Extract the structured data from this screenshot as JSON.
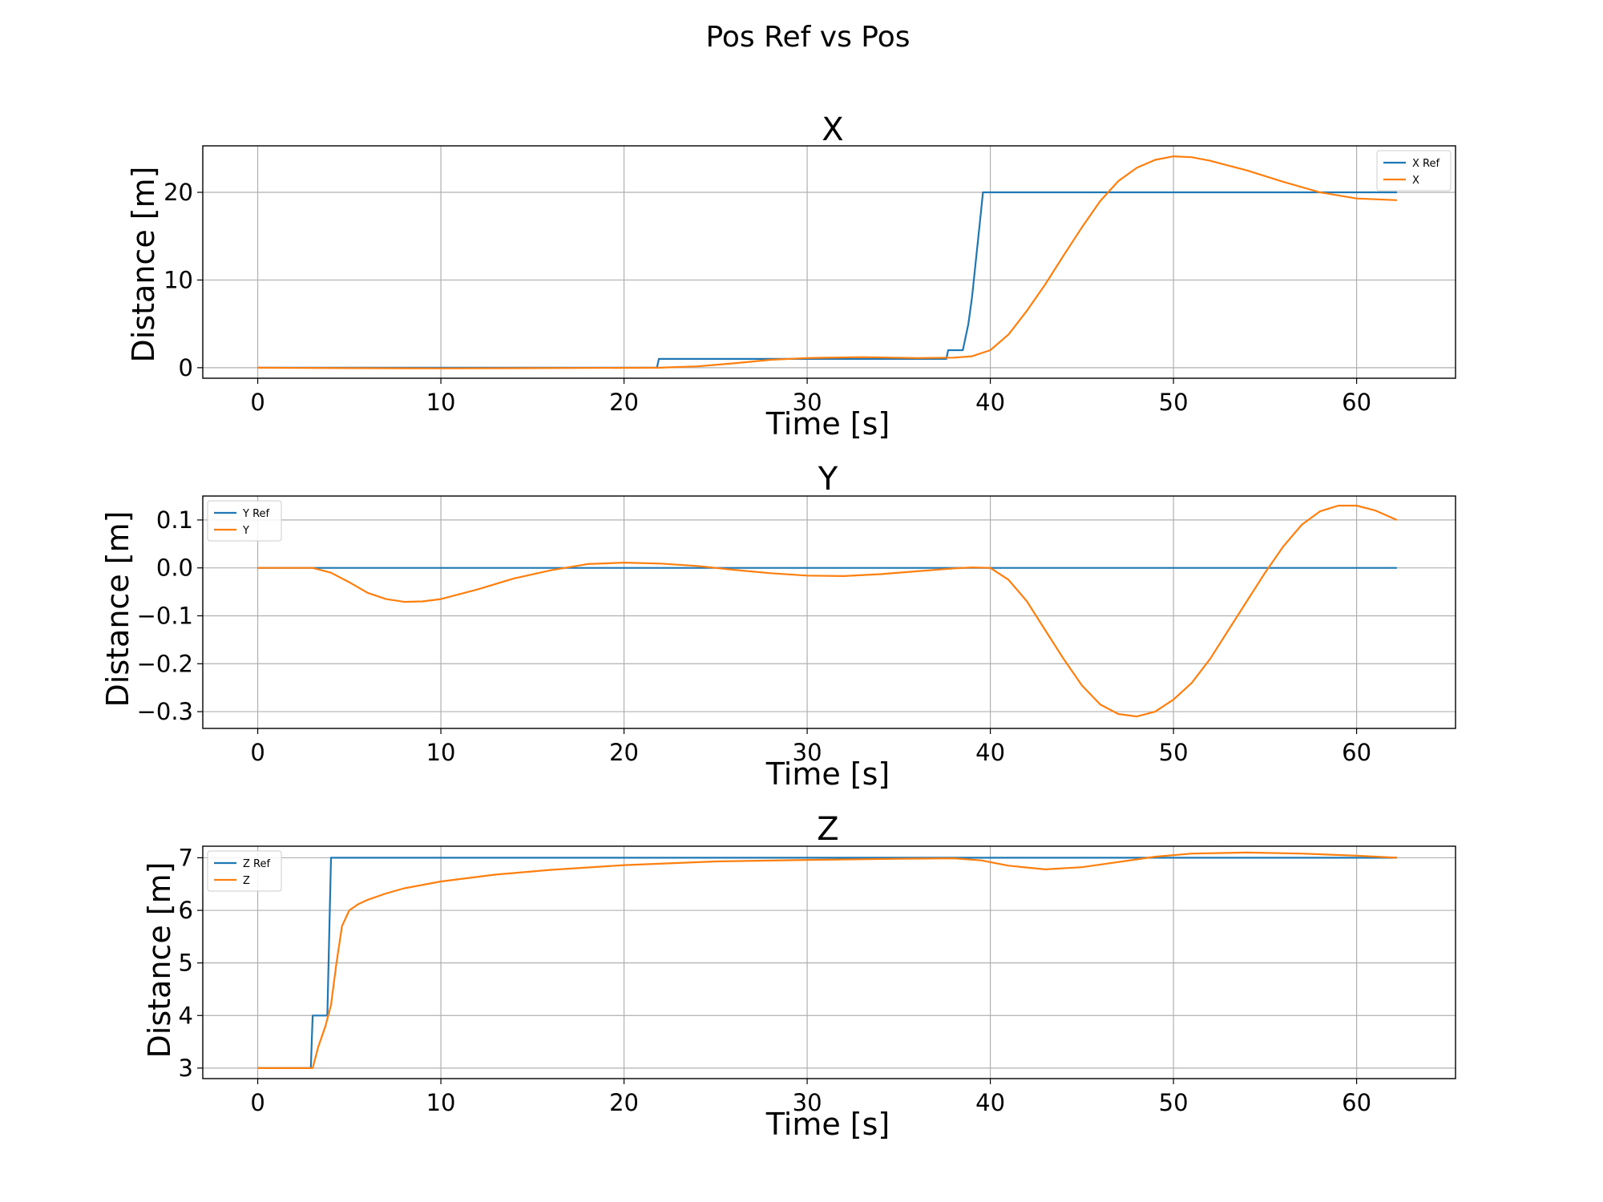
{
  "figure": {
    "title": "Pos Ref vs Pos"
  },
  "colors": {
    "reference": "#1f77b4",
    "actual": "#ff7f0e",
    "grid": "#b0b0b0"
  },
  "chart_data": [
    {
      "type": "line",
      "title": "X",
      "xlabel": "Time [s]",
      "ylabel": "Distance [m]",
      "xlim": [
        -3.0,
        65.4
      ],
      "ylim": [
        -1.2,
        25.3
      ],
      "xticks": [
        0,
        10,
        20,
        30,
        40,
        50,
        60
      ],
      "xtick_labels": [
        "0",
        "10",
        "20",
        "30",
        "40",
        "50",
        "60"
      ],
      "yticks": [
        0,
        10,
        20
      ],
      "ytick_labels": [
        "0",
        "10",
        "20"
      ],
      "grid": true,
      "legend_position": "top-right",
      "series": [
        {
          "name": "X Ref",
          "color": "#1f77b4",
          "x": [
            0,
            21.8,
            21.9,
            37.6,
            37.7,
            38.5,
            38.8,
            39.0,
            39.2,
            39.4,
            39.6,
            62.2
          ],
          "y": [
            0,
            0,
            1,
            1,
            2,
            2,
            5,
            8,
            12,
            16,
            20,
            20
          ]
        },
        {
          "name": "X",
          "color": "#ff7f0e",
          "x": [
            0,
            5,
            10,
            15,
            21.9,
            24,
            26,
            28,
            30,
            33,
            36,
            38,
            39,
            40,
            41,
            42,
            43,
            44,
            45,
            46,
            47,
            48,
            49,
            50,
            51,
            52,
            54,
            56,
            58,
            60,
            62.2
          ],
          "y": [
            0,
            -0.05,
            -0.08,
            -0.05,
            0,
            0.15,
            0.5,
            0.9,
            1.1,
            1.2,
            1.1,
            1.15,
            1.3,
            2.0,
            3.8,
            6.5,
            9.5,
            12.8,
            16.0,
            19.0,
            21.3,
            22.8,
            23.7,
            24.1,
            24.0,
            23.6,
            22.5,
            21.2,
            20.0,
            19.3,
            19.1
          ]
        }
      ]
    },
    {
      "type": "line",
      "title": "Y",
      "xlabel": "Time [s]",
      "ylabel": "Distance [m]",
      "xlim": [
        -3.0,
        65.4
      ],
      "ylim": [
        -0.335,
        0.15
      ],
      "xticks": [
        0,
        10,
        20,
        30,
        40,
        50,
        60
      ],
      "xtick_labels": [
        "0",
        "10",
        "20",
        "30",
        "40",
        "50",
        "60"
      ],
      "yticks": [
        0.1,
        0.0,
        -0.1,
        -0.2,
        -0.3
      ],
      "ytick_labels": [
        "0.1",
        "0.0",
        "−0.1",
        "−0.2",
        "−0.3"
      ],
      "grid": true,
      "legend_position": "top-left",
      "series": [
        {
          "name": "Y Ref",
          "color": "#1f77b4",
          "x": [
            0,
            62.2
          ],
          "y": [
            0,
            0
          ]
        },
        {
          "name": "Y",
          "color": "#ff7f0e",
          "x": [
            0,
            3,
            4,
            5,
            6,
            7,
            8,
            9,
            10,
            12,
            14,
            16,
            18,
            20,
            22,
            24,
            26,
            28,
            30,
            32,
            34,
            36,
            38,
            39,
            40,
            41,
            42,
            43,
            44,
            45,
            46,
            47,
            48,
            49,
            50,
            51,
            52,
            53,
            54,
            55,
            56,
            57,
            58,
            59,
            60,
            61,
            62.2
          ],
          "y": [
            0,
            0,
            -0.01,
            -0.03,
            -0.052,
            -0.065,
            -0.071,
            -0.07,
            -0.065,
            -0.045,
            -0.022,
            -0.005,
            0.008,
            0.011,
            0.009,
            0.004,
            -0.004,
            -0.011,
            -0.016,
            -0.017,
            -0.013,
            -0.007,
            -0.001,
            0.001,
            0,
            -0.025,
            -0.07,
            -0.13,
            -0.19,
            -0.245,
            -0.285,
            -0.305,
            -0.31,
            -0.3,
            -0.275,
            -0.24,
            -0.19,
            -0.13,
            -0.07,
            -0.01,
            0.045,
            0.09,
            0.118,
            0.13,
            0.13,
            0.12,
            0.1
          ]
        }
      ]
    },
    {
      "type": "line",
      "title": "Z",
      "xlabel": "Time [s]",
      "ylabel": "Distance [m]",
      "xlim": [
        -3.0,
        65.4
      ],
      "ylim": [
        2.8,
        7.22
      ],
      "xticks": [
        0,
        10,
        20,
        30,
        40,
        50,
        60
      ],
      "xtick_labels": [
        "0",
        "10",
        "20",
        "30",
        "40",
        "50",
        "60"
      ],
      "yticks": [
        3,
        4,
        5,
        6,
        7
      ],
      "ytick_labels": [
        "3",
        "4",
        "5",
        "6",
        "7"
      ],
      "grid": true,
      "legend_position": "top-left",
      "series": [
        {
          "name": "Z Ref",
          "color": "#1f77b4",
          "x": [
            0,
            2.9,
            3.0,
            3.8,
            4.0,
            62.2
          ],
          "y": [
            3,
            3,
            4,
            4,
            7,
            7
          ]
        },
        {
          "name": "Z",
          "color": "#ff7f0e",
          "x": [
            0,
            3.0,
            3.3,
            3.7,
            4.0,
            4.3,
            4.6,
            5.0,
            5.5,
            6,
            7,
            8,
            10,
            13,
            16,
            20,
            25,
            30,
            35,
            38,
            39.5,
            41,
            43,
            45,
            47,
            49,
            51,
            54,
            57,
            60,
            62.2
          ],
          "y": [
            3,
            3,
            3.4,
            3.8,
            4.2,
            5.0,
            5.7,
            6.0,
            6.12,
            6.2,
            6.32,
            6.42,
            6.55,
            6.68,
            6.77,
            6.86,
            6.93,
            6.96,
            6.98,
            6.99,
            6.95,
            6.85,
            6.78,
            6.82,
            6.92,
            7.02,
            7.08,
            7.1,
            7.08,
            7.04,
            7.0
          ]
        }
      ]
    }
  ]
}
